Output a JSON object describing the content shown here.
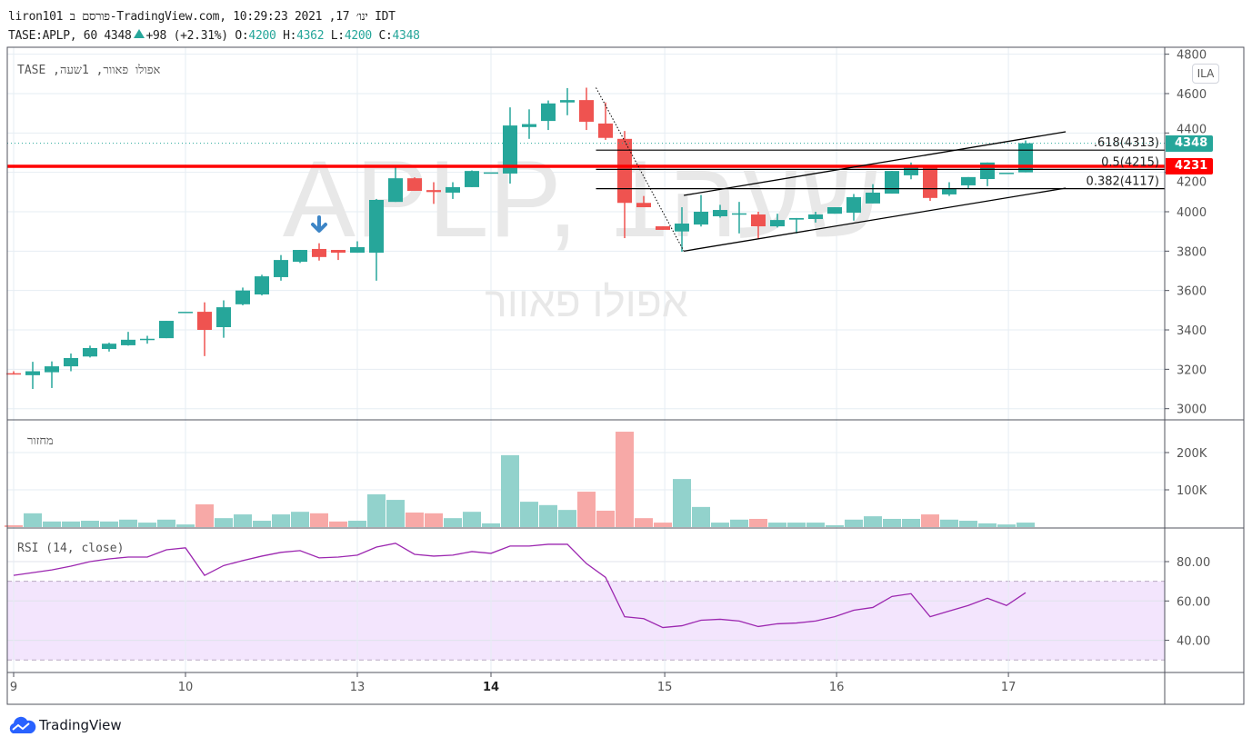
{
  "header": {
    "published_line": "liron101 פורסם ב-TradingView.com, ינו׳ 17, 2021 10:29:23 IDT",
    "symbol": "TASE:APLP, 60",
    "last": "4348",
    "change": "+98 (+2.31%)",
    "o_label": "O:",
    "o": "4200",
    "h_label": "H:",
    "h": "4362",
    "l_label": "L:",
    "l": "4200",
    "c_label": "C:",
    "c": "4348"
  },
  "legend": {
    "main": "אפולו פאוור, 1שעה, TASE",
    "volume": "מחזור",
    "rsi": "RSI (14, close)"
  },
  "watermark": {
    "line1": "APLP, 1שעה",
    "line2": "אפולו פאוור"
  },
  "currency_badge": "ILA",
  "price_tags": {
    "last": "4348",
    "hline": "4231"
  },
  "brand": "TradingView",
  "colors": {
    "up": "#26a69a",
    "down": "#ef5350",
    "vol_up": "#92d2cc",
    "vol_down": "#f7a9a7",
    "rsi": "#9c27b0",
    "hline": "#ff0000"
  },
  "chart_data": {
    "type": "candlestick",
    "symbol": "TASE:APLP",
    "interval": "60",
    "price_axis": {
      "ticks": [
        "4800",
        "4600",
        "4400",
        "4200",
        "4000",
        "3800",
        "3600",
        "3400",
        "3200",
        "3000"
      ],
      "range": [
        2950,
        4830
      ]
    },
    "time_axis": [
      {
        "label": "9",
        "bar": 0,
        "bold": false
      },
      {
        "label": "10",
        "bar": 9,
        "bold": false
      },
      {
        "label": "13",
        "bar": 18,
        "bold": false
      },
      {
        "label": "14",
        "bar": 25,
        "bold": true
      },
      {
        "label": "15",
        "bar": 34.1,
        "bold": false
      },
      {
        "label": "16",
        "bar": 43.1,
        "bold": false
      },
      {
        "label": "17",
        "bar": 52.1,
        "bold": false
      }
    ],
    "ohlc": [
      [
        3180,
        3190,
        3175,
        3175
      ],
      [
        3170,
        3238,
        3100,
        3190
      ],
      [
        3185,
        3240,
        3105,
        3215
      ],
      [
        3215,
        3280,
        3190,
        3257
      ],
      [
        3265,
        3320,
        3260,
        3308
      ],
      [
        3303,
        3335,
        3290,
        3330
      ],
      [
        3322,
        3390,
        3320,
        3350
      ],
      [
        3350,
        3370,
        3330,
        3355
      ],
      [
        3358,
        3446,
        3358,
        3446
      ],
      [
        3492,
        3492,
        3492,
        3492
      ],
      [
        3492,
        3540,
        3267,
        3400
      ],
      [
        3414,
        3550,
        3360,
        3515
      ],
      [
        3530,
        3615,
        3525,
        3600
      ],
      [
        3580,
        3680,
        3575,
        3672
      ],
      [
        3668,
        3780,
        3650,
        3755
      ],
      [
        3746,
        3806,
        3740,
        3806
      ],
      [
        3811,
        3840,
        3752,
        3770
      ],
      [
        3806,
        3806,
        3755,
        3792
      ],
      [
        3792,
        3850,
        3792,
        3820
      ],
      [
        3792,
        4065,
        3650,
        4060
      ],
      [
        4050,
        4230,
        4050,
        4170
      ],
      [
        4170,
        4175,
        4106,
        4106
      ],
      [
        4110,
        4150,
        4040,
        4100
      ],
      [
        4097,
        4150,
        4065,
        4125
      ],
      [
        4125,
        4210,
        4125,
        4207
      ],
      [
        4200,
        4200,
        4200,
        4200
      ],
      [
        4194,
        4530,
        4143,
        4438
      ],
      [
        4430,
        4520,
        4370,
        4445
      ],
      [
        4461,
        4565,
        4415,
        4550
      ],
      [
        4555,
        4628,
        4490,
        4567
      ],
      [
        4567,
        4630,
        4415,
        4457
      ],
      [
        4448,
        4555,
        4365,
        4375
      ],
      [
        4370,
        4410,
        3866,
        4045
      ],
      [
        4045,
        4080,
        4023,
        4023
      ],
      [
        3926,
        3926,
        3908,
        3908
      ],
      [
        3900,
        4023,
        3797,
        3940
      ],
      [
        3935,
        4085,
        3925,
        4000
      ],
      [
        3977,
        4035,
        3970,
        4009
      ],
      [
        3992,
        4050,
        3890,
        3992
      ],
      [
        3986,
        4000,
        3865,
        3926
      ],
      [
        3926,
        3990,
        3920,
        3958
      ],
      [
        3960,
        3968,
        3890,
        3968
      ],
      [
        3963,
        4000,
        3945,
        3986
      ],
      [
        3990,
        4023,
        3990,
        4023
      ],
      [
        3995,
        4090,
        3955,
        4074
      ],
      [
        4042,
        4140,
        4042,
        4097
      ],
      [
        4092,
        4207,
        4092,
        4207
      ],
      [
        4185,
        4250,
        4165,
        4231
      ],
      [
        4231,
        4231,
        4055,
        4070
      ],
      [
        4088,
        4150,
        4080,
        4115
      ],
      [
        4134,
        4176,
        4120,
        4176
      ],
      [
        4166,
        4250,
        4130,
        4250
      ],
      [
        4198,
        4198,
        4198,
        4198
      ],
      [
        4200,
        4362,
        4200,
        4348
      ]
    ],
    "volume_axis": {
      "ticks": [
        "200K",
        "100K"
      ],
      "tick_values": [
        200000,
        100000
      ]
    },
    "volume": [
      5000,
      37000,
      15000,
      15000,
      17000,
      15000,
      20000,
      12000,
      20000,
      7000,
      61000,
      24000,
      34000,
      17000,
      34000,
      41000,
      37000,
      15000,
      17000,
      88000,
      73000,
      39000,
      37000,
      24000,
      41000,
      10000,
      193000,
      68000,
      59000,
      46000,
      95000,
      44000,
      256000,
      24000,
      12000,
      129000,
      54000,
      12000,
      20000,
      22000,
      12000,
      12000,
      12000,
      5000,
      20000,
      29000,
      22000,
      22000,
      34000,
      20000,
      17000,
      10000,
      7000,
      12000
    ],
    "rsi": {
      "period": 14,
      "source": "close",
      "ticks": [
        "80.00",
        "60.00",
        "40.00"
      ],
      "tick_values": [
        80,
        60,
        40
      ],
      "band": [
        30,
        70
      ],
      "values": [
        73,
        74.4,
        75.8,
        77.7,
        80,
        81.4,
        82.3,
        82.3,
        86,
        87,
        73,
        78,
        80.5,
        82.8,
        84.7,
        85.6,
        81.9,
        82.3,
        83.3,
        87.4,
        89.3,
        83.7,
        82.8,
        83.3,
        85.1,
        84.2,
        87.9,
        87.9,
        88.8,
        88.8,
        79,
        72,
        52,
        51,
        46.5,
        47.4,
        50.2,
        50.7,
        49.8,
        47,
        48.4,
        48.8,
        49.8,
        52,
        55.3,
        56.7,
        62.3,
        63.7,
        52,
        54.9,
        57.7,
        61.4,
        57.7,
        64.2
      ]
    },
    "drawings": {
      "horizontal_line": 4231,
      "last_price_line": 4348,
      "fibonacci": {
        "from_bar": 30.5,
        "levels": [
          {
            "label": ".618(4313)",
            "price": 4313
          },
          {
            "label": "0.5(4215)",
            "price": 4215
          },
          {
            "label": "0.382(4117)",
            "price": 4117
          }
        ]
      },
      "trend_line": [
        [
          30.5,
          4630
        ],
        [
          35.1,
          3800
        ]
      ],
      "channel_upper": [
        [
          35.1,
          4083
        ],
        [
          55.1,
          4406
        ]
      ],
      "channel_lower": [
        [
          35.1,
          3800
        ],
        [
          55.1,
          4120
        ]
      ],
      "arrow_down_bar": 16
    }
  }
}
